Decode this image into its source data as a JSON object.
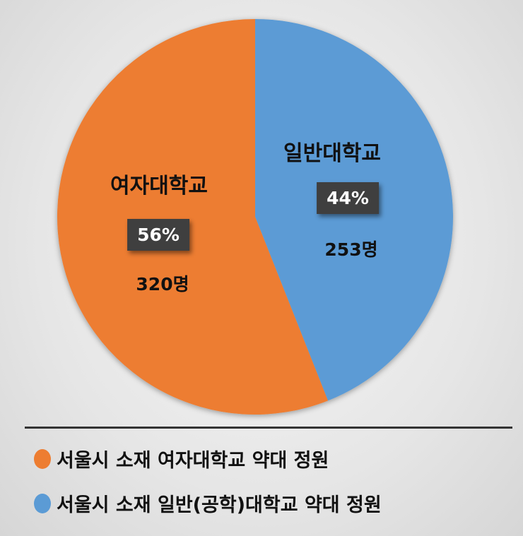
{
  "chart_data": {
    "type": "pie",
    "slices": [
      {
        "label": "일반대학교",
        "percent": 44,
        "count_label": "253명",
        "value": 253,
        "color": "#5B9BD5"
      },
      {
        "label": "여자대학교",
        "percent": 56,
        "count_label": "320명",
        "value": 320,
        "color": "#ED7D31"
      }
    ],
    "percent_labels": [
      "44%",
      "56%"
    ],
    "legend": [
      {
        "label": "서울시 소재 여자대학교 약대 정원",
        "color": "#ED7D31"
      },
      {
        "label": "서울시 소재 일반(공학)대학교 약대 정원",
        "color": "#5B9BD5"
      }
    ],
    "legend_placement": "bottom",
    "start_angle": "12 o'clock, clockwise"
  }
}
